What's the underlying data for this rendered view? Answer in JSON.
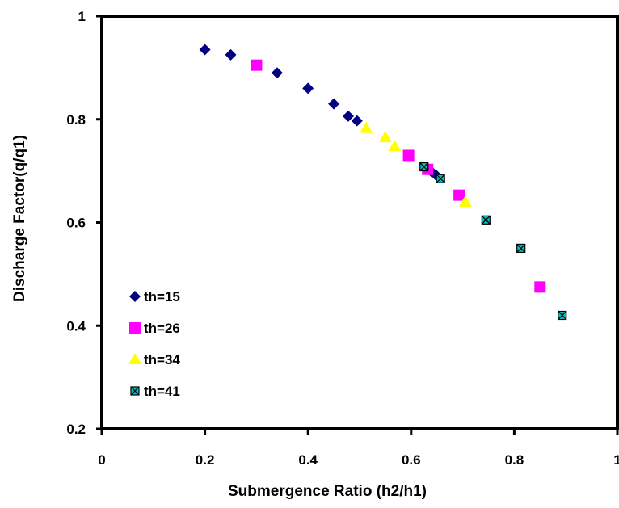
{
  "chart_data": {
    "type": "scatter",
    "title": "",
    "xlabel": "Submergence Ratio (h2/h1)",
    "ylabel": "Discharge Factor(q/q1)",
    "xlim": [
      0,
      1
    ],
    "ylim": [
      0.2,
      1
    ],
    "x_ticks": [
      0,
      0.2,
      0.4,
      0.6,
      0.8,
      1
    ],
    "x_tick_labels": [
      "0",
      "0.2",
      "0.4",
      "0.6",
      "0.8",
      "1"
    ],
    "y_ticks": [
      0.2,
      0.4,
      0.6,
      0.8,
      1
    ],
    "y_tick_labels": [
      "0.2",
      "0.4",
      "0.6",
      "0.8",
      "1"
    ],
    "grid": false,
    "legend_position": "bottom-left",
    "series": [
      {
        "name": "th=15",
        "marker": "diamond",
        "color": "#000080",
        "points": [
          [
            0.2,
            0.935
          ],
          [
            0.25,
            0.925
          ],
          [
            0.34,
            0.89
          ],
          [
            0.4,
            0.86
          ],
          [
            0.45,
            0.83
          ],
          [
            0.478,
            0.806
          ],
          [
            0.495,
            0.797
          ],
          [
            0.64,
            0.698
          ],
          [
            0.648,
            0.692
          ]
        ]
      },
      {
        "name": "th=26",
        "marker": "square",
        "color": "#ff00ff",
        "points": [
          [
            0.3,
            0.905
          ],
          [
            0.595,
            0.73
          ],
          [
            0.632,
            0.703
          ],
          [
            0.693,
            0.653
          ],
          [
            0.85,
            0.475
          ]
        ]
      },
      {
        "name": "th=34",
        "marker": "triangle",
        "color": "#ffff00",
        "points": [
          [
            0.513,
            0.783
          ],
          [
            0.55,
            0.765
          ],
          [
            0.568,
            0.748
          ],
          [
            0.705,
            0.64
          ]
        ]
      },
      {
        "name": "th=41",
        "marker": "x-square",
        "color": "#00c0c0",
        "points": [
          [
            0.625,
            0.708
          ],
          [
            0.657,
            0.685
          ],
          [
            0.745,
            0.605
          ],
          [
            0.813,
            0.55
          ],
          [
            0.893,
            0.42
          ]
        ]
      }
    ]
  }
}
